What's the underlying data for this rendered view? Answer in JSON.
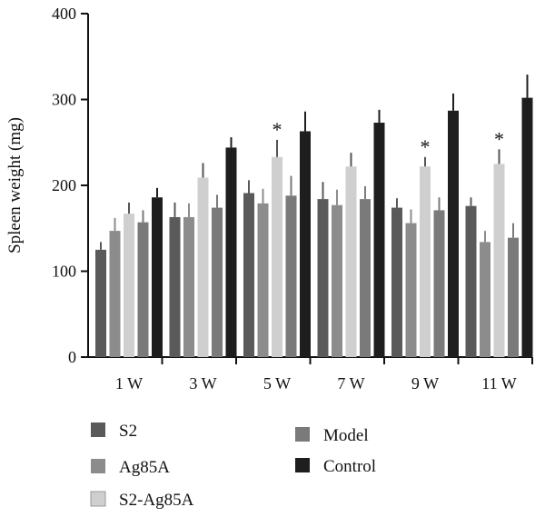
{
  "chart_data": {
    "type": "bar",
    "title": "",
    "xlabel": "",
    "ylabel": "Spleen weight (mg)",
    "ylim": [
      0,
      400
    ],
    "yticks": [
      0,
      100,
      200,
      300,
      400
    ],
    "categories": [
      "1 W",
      "3 W",
      "5 W",
      "7 W",
      "9 W",
      "11 W"
    ],
    "legend_position": "bottom",
    "grid": false,
    "series": [
      {
        "name": "S2",
        "color": "#5a5a5a",
        "values": [
          125,
          163,
          191,
          184,
          174,
          176
        ],
        "errors": [
          9,
          17,
          15,
          20,
          11,
          10
        ]
      },
      {
        "name": "Ag85A",
        "color": "#8c8c8c",
        "values": [
          147,
          163,
          179,
          177,
          156,
          134
        ],
        "errors": [
          15,
          16,
          17,
          18,
          16,
          13
        ]
      },
      {
        "name": "S2-Ag85A",
        "color": "#cfcfcf",
        "values": [
          167,
          209,
          233,
          222,
          222,
          225
        ],
        "errors": [
          13,
          17,
          20,
          16,
          11,
          17
        ]
      },
      {
        "name": "Model",
        "color": "#7a7a7a",
        "values": [
          157,
          174,
          188,
          184,
          171,
          139
        ],
        "errors": [
          14,
          15,
          23,
          15,
          15,
          17
        ]
      },
      {
        "name": "Control",
        "color": "#1e1e1e",
        "values": [
          186,
          244,
          263,
          273,
          287,
          302
        ],
        "errors": [
          11,
          12,
          23,
          15,
          20,
          27
        ]
      }
    ],
    "annotations": [
      {
        "category": "5 W",
        "series": "S2-Ag85A",
        "text": "*"
      },
      {
        "category": "9 W",
        "series": "S2-Ag85A",
        "text": "*"
      },
      {
        "category": "11 W",
        "series": "S2-Ag85A",
        "text": "*"
      }
    ]
  }
}
